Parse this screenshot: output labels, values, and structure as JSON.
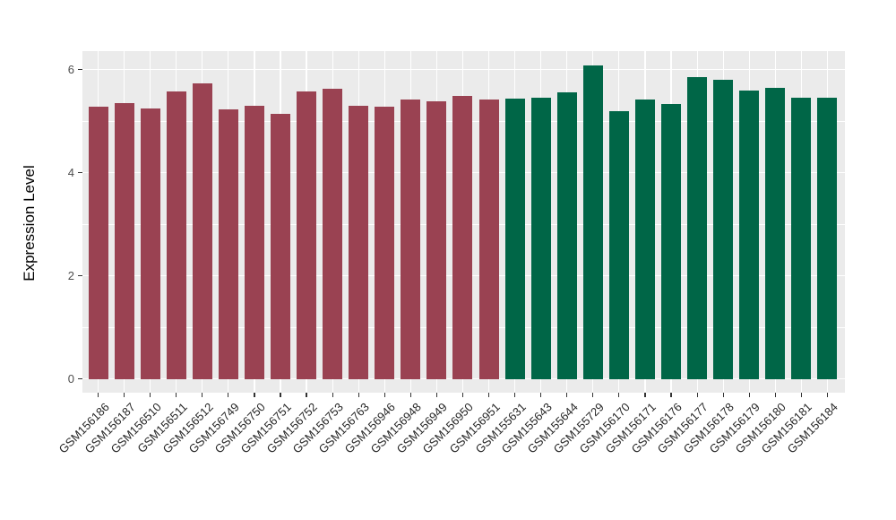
{
  "figure": {
    "background": "#ffffff",
    "panel_background": "#EBEBEB",
    "gridline_color": "#FFFFFF",
    "tick_mark_color": "#333333",
    "axis_text_color": "#4d4d4d",
    "x_label_color": "#262626",
    "y_axis_title": "Expression Level"
  },
  "chart_data": {
    "type": "bar",
    "title": "",
    "xlabel": "",
    "ylabel": "Expression Level",
    "ylim": [
      0,
      6.37
    ],
    "yticks": [
      0,
      2,
      4,
      6
    ],
    "yticks_minor": [
      1,
      3,
      5
    ],
    "grid": "major and minor horizontal white lines, vertical white line at each category",
    "legend": "none",
    "bar_width_fraction": 0.76,
    "group_colors": {
      "group1": "#9A4252",
      "group2": "#006647"
    },
    "categories": [
      "GSM156186",
      "GSM156187",
      "GSM156510",
      "GSM156511",
      "GSM156512",
      "GSM156749",
      "GSM156750",
      "GSM156751",
      "GSM156752",
      "GSM156753",
      "GSM156763",
      "GSM156946",
      "GSM156948",
      "GSM156949",
      "GSM156950",
      "GSM156951",
      "GSM155631",
      "GSM155643",
      "GSM155644",
      "GSM155729",
      "GSM156170",
      "GSM156171",
      "GSM156176",
      "GSM156177",
      "GSM156178",
      "GSM156179",
      "GSM156180",
      "GSM156181",
      "GSM156184"
    ],
    "values": [
      5.27,
      5.35,
      5.25,
      5.58,
      5.73,
      5.22,
      5.3,
      5.14,
      5.57,
      5.63,
      5.29,
      5.27,
      5.41,
      5.38,
      5.49,
      5.42,
      5.44,
      5.46,
      5.55,
      6.07,
      5.2,
      5.41,
      5.33,
      5.85,
      5.8,
      5.6,
      5.64,
      5.45,
      5.46
    ],
    "groups": [
      "group1",
      "group1",
      "group1",
      "group1",
      "group1",
      "group1",
      "group1",
      "group1",
      "group1",
      "group1",
      "group1",
      "group1",
      "group1",
      "group1",
      "group1",
      "group1",
      "group2",
      "group2",
      "group2",
      "group2",
      "group2",
      "group2",
      "group2",
      "group2",
      "group2",
      "group2",
      "group2",
      "group2",
      "group2"
    ]
  }
}
